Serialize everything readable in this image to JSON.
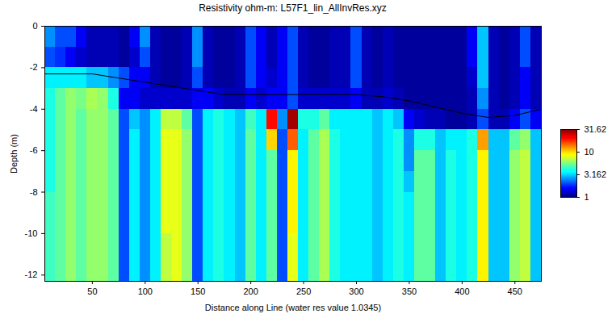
{
  "chart_data": {
    "type": "heatmap",
    "title": "Resistivity ohm-m: L57F1_lin_AllInvRes.xyz",
    "x_label": "Distance along Line (water res value 1.0345)",
    "y_label": "Depth (m)",
    "xlim": [
      5,
      475
    ],
    "xticks": [
      50,
      100,
      150,
      200,
      250,
      300,
      350,
      400,
      450
    ],
    "ylim": [
      -12.3,
      0
    ],
    "yticks": [
      -12,
      -10,
      -8,
      -6,
      -4,
      -2,
      0
    ],
    "x_edges": [
      5,
      15,
      25,
      35,
      45,
      55,
      65,
      75,
      85,
      95,
      105,
      115,
      125,
      135,
      145,
      155,
      165,
      175,
      185,
      195,
      205,
      215,
      225,
      235,
      245,
      255,
      265,
      275,
      285,
      295,
      305,
      315,
      325,
      335,
      345,
      355,
      365,
      375,
      385,
      395,
      405,
      415,
      425,
      435,
      445,
      455,
      465,
      475
    ],
    "y_edges": [
      0,
      -1,
      -2,
      -3,
      -4,
      -5,
      -6,
      -7,
      -8,
      -10,
      -12.3
    ],
    "values": [
      [
        2.5,
        2,
        3.5,
        4,
        4,
        4,
        4,
        4,
        4.5,
        4.5
      ],
      [
        2,
        1.8,
        3.5,
        5,
        5,
        5,
        5,
        5,
        5,
        5
      ],
      [
        2,
        1.5,
        3.5,
        6,
        6,
        6,
        6,
        6,
        6,
        6
      ],
      [
        1.5,
        1.3,
        3.5,
        5.5,
        5,
        5,
        5,
        5,
        5,
        5
      ],
      [
        1.2,
        1.2,
        3,
        6.5,
        6,
        6,
        6,
        6,
        6,
        6
      ],
      [
        1.2,
        1.2,
        3,
        6,
        6,
        6,
        6,
        6,
        6,
        6
      ],
      [
        1.2,
        1.2,
        2.5,
        4,
        5,
        5,
        5,
        5,
        5,
        5
      ],
      [
        1.1,
        1.1,
        2,
        1.5,
        2,
        2,
        2,
        2,
        2,
        2
      ],
      [
        1.5,
        1.3,
        1.5,
        1.5,
        3,
        3.5,
        3.5,
        3.5,
        3.5,
        3.5
      ],
      [
        2.5,
        2,
        1.5,
        1.3,
        2.5,
        2.5,
        2.5,
        2.5,
        2.5,
        2.5
      ],
      [
        1.2,
        1.2,
        1.2,
        1.3,
        3.5,
        3.5,
        3.5,
        3.5,
        3.5,
        3.5
      ],
      [
        1.1,
        1.1,
        1.1,
        1.3,
        7,
        8,
        8,
        8,
        8,
        7
      ],
      [
        1.1,
        1.1,
        1.1,
        1.3,
        7,
        8,
        8,
        8,
        8,
        8
      ],
      [
        1.2,
        1.2,
        1.2,
        1.3,
        5,
        6,
        6,
        6,
        6,
        6
      ],
      [
        2.5,
        2.5,
        2,
        1.5,
        2,
        2,
        2,
        2,
        2,
        2
      ],
      [
        1.2,
        1.2,
        1.2,
        1.5,
        3.5,
        3.5,
        3.5,
        3.5,
        3.5,
        3.5
      ],
      [
        1.1,
        1.1,
        1.1,
        1.3,
        4,
        4,
        4,
        4,
        4,
        4
      ],
      [
        1.1,
        1.1,
        1.1,
        1.2,
        3.5,
        3.5,
        3.5,
        3.5,
        3.5,
        3.5
      ],
      [
        1.2,
        1.2,
        1.2,
        1.2,
        3,
        3,
        3,
        3,
        3,
        3
      ],
      [
        2,
        2,
        2,
        1.5,
        4.5,
        5,
        5,
        5,
        5,
        5
      ],
      [
        1.5,
        1.5,
        1.5,
        1.3,
        3.5,
        3.5,
        3.5,
        3.5,
        3.5,
        3.5
      ],
      [
        1.2,
        1.2,
        1.3,
        1.5,
        20,
        10,
        5,
        5,
        5,
        5
      ],
      [
        1.5,
        1.5,
        1.5,
        1.5,
        2.5,
        2,
        2,
        2,
        2,
        2
      ],
      [
        2,
        2,
        2,
        2,
        28,
        15,
        9,
        9,
        9,
        8
      ],
      [
        1.2,
        1.2,
        1.2,
        1.3,
        4,
        3.5,
        3.5,
        3.5,
        3.5,
        3.5
      ],
      [
        1.1,
        1.1,
        1.1,
        1.3,
        4,
        5,
        5,
        5,
        5,
        5
      ],
      [
        1.1,
        1.1,
        1.1,
        1.3,
        5,
        6.5,
        6.5,
        6.5,
        6.5,
        6.5
      ],
      [
        1.2,
        1.2,
        1.2,
        1.3,
        3.5,
        4,
        4,
        4,
        4,
        4
      ],
      [
        1.2,
        1.2,
        1.2,
        1.3,
        3.5,
        3.5,
        3.5,
        3.5,
        3.5,
        3.5
      ],
      [
        2,
        2,
        2,
        1.5,
        3.5,
        3.5,
        3.5,
        3.5,
        3.5,
        3.5
      ],
      [
        1.2,
        1.2,
        1.2,
        1.2,
        3.5,
        3.5,
        3.5,
        3.5,
        3.5,
        3.5
      ],
      [
        1.1,
        1.1,
        1.1,
        1.2,
        3,
        3,
        3,
        3,
        3,
        3
      ],
      [
        1.2,
        1.2,
        1.2,
        1.3,
        3.5,
        3.5,
        3.5,
        3.5,
        3.5,
        3.5
      ],
      [
        1.1,
        1.1,
        1.1,
        1.2,
        3,
        4,
        4,
        4,
        4,
        4
      ],
      [
        1.1,
        1.1,
        1.1,
        1.1,
        1.5,
        2.5,
        2.5,
        3,
        3.5,
        3.5
      ],
      [
        1.1,
        1.1,
        1.1,
        1.1,
        1.3,
        4,
        5,
        5,
        5,
        5
      ],
      [
        1.1,
        1.1,
        1.1,
        1.1,
        1.2,
        4,
        5,
        5,
        5,
        5
      ],
      [
        1.1,
        1.1,
        1.1,
        1.1,
        1.2,
        3,
        3,
        3,
        3,
        3
      ],
      [
        1.1,
        1.1,
        1.1,
        1.1,
        1.1,
        3.5,
        4,
        4,
        4,
        4
      ],
      [
        1.1,
        1.1,
        1.1,
        1.1,
        1.1,
        3.5,
        3.5,
        3.5,
        3.5,
        3.5
      ],
      [
        1.5,
        1.5,
        1.3,
        1.2,
        1.2,
        4,
        4,
        4,
        4,
        4
      ],
      [
        3,
        3,
        3,
        2.5,
        2,
        12,
        9,
        9,
        9,
        9
      ],
      [
        1.2,
        1.2,
        1.2,
        1.2,
        1.2,
        3,
        3,
        3,
        3,
        3
      ],
      [
        1.1,
        1.1,
        1.1,
        1.1,
        1.2,
        3,
        3,
        3,
        3,
        3
      ],
      [
        1.2,
        1.2,
        1.2,
        1.2,
        1.5,
        5,
        6,
        6,
        6,
        6
      ],
      [
        2,
        2,
        1.5,
        1.5,
        2,
        6,
        7,
        7,
        7,
        7
      ],
      [
        1.2,
        1.2,
        1.2,
        1.2,
        1.5,
        3,
        3,
        3,
        3,
        3
      ]
    ],
    "series": [
      {
        "type": "line",
        "color": "#000000",
        "x": [
          5,
          50,
          75,
          100,
          150,
          175,
          200,
          250,
          300,
          325,
          350,
          375,
          400,
          425,
          450,
          475
        ],
        "values": [
          -2.3,
          -2.3,
          -2.5,
          -2.7,
          -3.1,
          -3.3,
          -3.3,
          -3.3,
          -3.3,
          -3.4,
          -3.6,
          -3.9,
          -4.2,
          -4.4,
          -4.3,
          -4.0
        ]
      }
    ],
    "colorbar": {
      "range": [
        1,
        31.62
      ],
      "ticks": [
        1,
        3.162,
        10,
        31.62
      ],
      "log": true
    }
  }
}
